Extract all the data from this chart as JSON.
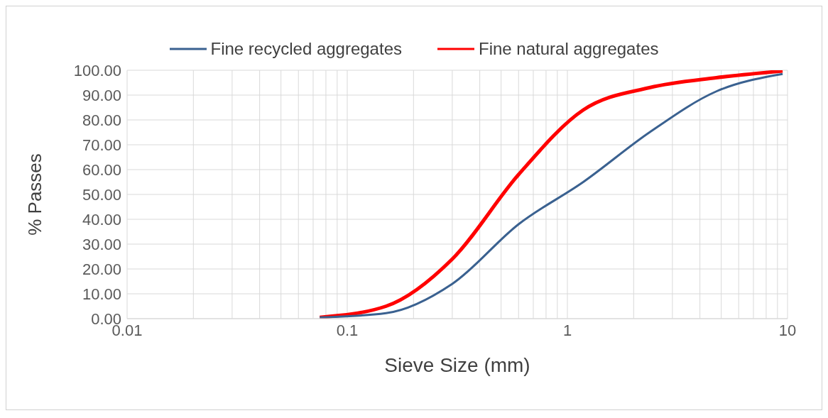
{
  "chart_data": {
    "type": "line",
    "xlabel": "Sieve Size (mm)",
    "ylabel": "% Passes",
    "log": "x",
    "grid": true,
    "legend": "top",
    "marker": "none",
    "line_style": "solid",
    "xlim": [
      0.01,
      10
    ],
    "xticks": [
      0.01,
      {
        "value": 0.02,
        "label": null
      },
      {
        "value": 0.03,
        "label": null
      },
      {
        "value": 0.04,
        "label": null
      },
      {
        "value": 0.05,
        "label": null
      },
      {
        "value": 0.06,
        "label": null
      },
      {
        "value": 0.07,
        "label": null
      },
      {
        "value": 0.08,
        "label": null
      },
      {
        "value": 0.09,
        "label": null
      },
      0.1,
      {
        "value": 0.2,
        "label": null
      },
      {
        "value": 0.3,
        "label": null
      },
      {
        "value": 0.4,
        "label": null
      },
      {
        "value": 0.5,
        "label": null
      },
      {
        "value": 0.6,
        "label": null
      },
      {
        "value": 0.7,
        "label": null
      },
      {
        "value": 0.8,
        "label": null
      },
      {
        "value": 0.9,
        "label": null
      },
      1,
      {
        "value": 2,
        "label": null
      },
      {
        "value": 3,
        "label": null
      },
      {
        "value": 4,
        "label": null
      },
      {
        "value": 5,
        "label": null
      },
      {
        "value": 6,
        "label": null
      },
      {
        "value": 7,
        "label": null
      },
      {
        "value": 8,
        "label": null
      },
      {
        "value": 9,
        "label": null
      },
      10
    ],
    "ylim": [
      0,
      100
    ],
    "yticks": [
      {
        "value": 0,
        "label": "0.00"
      },
      {
        "value": 10,
        "label": "10.00"
      },
      {
        "value": 20,
        "label": "20.00"
      },
      {
        "value": 30,
        "label": "30.00"
      },
      {
        "value": 40,
        "label": "40.00"
      },
      {
        "value": 50,
        "label": "50.00"
      },
      {
        "value": 60,
        "label": "60.00"
      },
      {
        "value": 70,
        "label": "70.00"
      },
      {
        "value": 80,
        "label": "80.00"
      },
      {
        "value": 90,
        "label": "90.00"
      },
      {
        "value": 100,
        "label": "100.00"
      }
    ],
    "series": [
      {
        "name": "Fine recycled aggregates",
        "color": "#3a6190",
        "x": [
          0.075,
          0.15,
          0.3,
          0.6,
          1.18,
          2.36,
          4.75,
          9.5
        ],
        "values": [
          0.5,
          2.2,
          14,
          38,
          55,
          75,
          91.5,
          98.5
        ]
      },
      {
        "name": "Fine natural aggregates",
        "color": "#ff0000",
        "x": [
          0.075,
          0.15,
          0.3,
          0.6,
          1.18,
          2.36,
          4.75,
          9.5
        ],
        "values": [
          0.5,
          5,
          24,
          58,
          84,
          93,
          97,
          99.7
        ]
      }
    ]
  }
}
